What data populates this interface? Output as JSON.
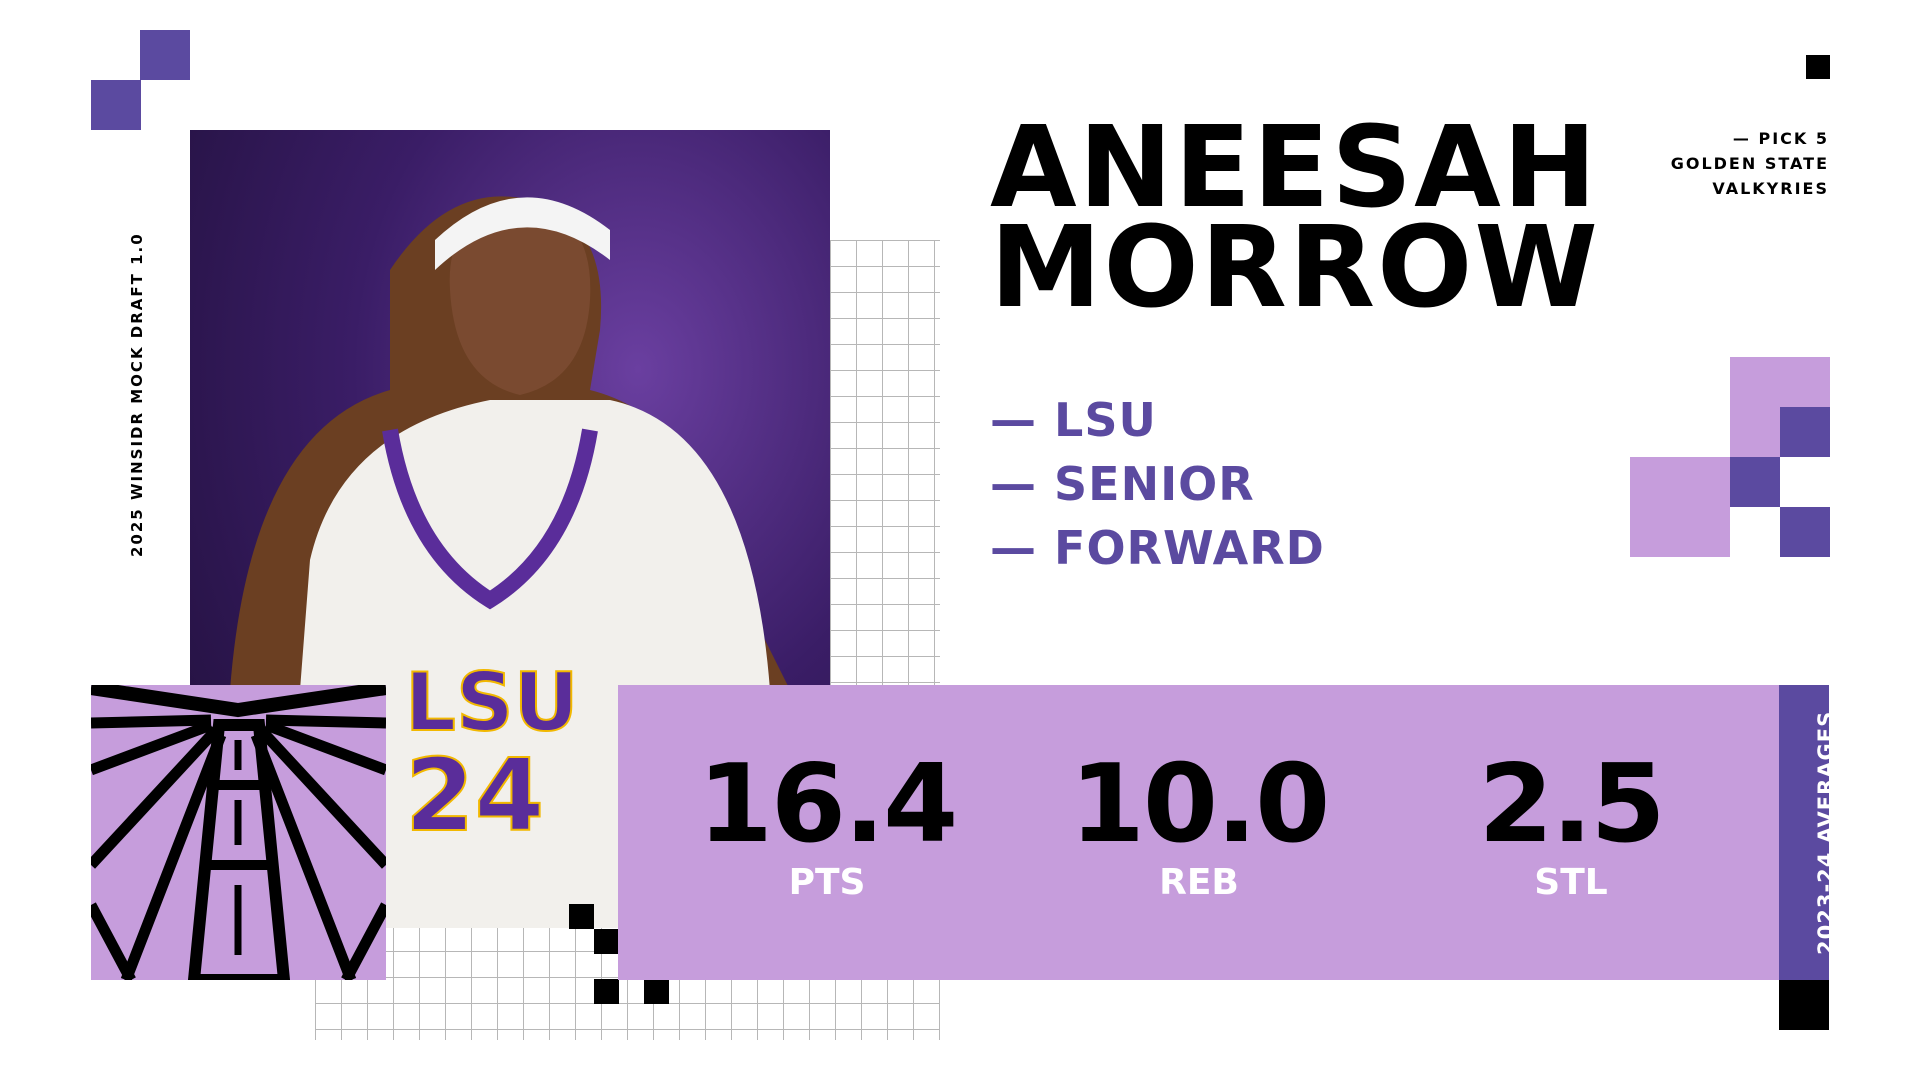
{
  "side_label": "2025 WINSIDR MOCK DRAFT 1.0",
  "player": {
    "first_name": "ANEESAH",
    "last_name": "MORROW"
  },
  "draft": {
    "pick": "— PICK 5",
    "team_line1": "GOLDEN STATE",
    "team_line2": "VALKYRIES"
  },
  "details": [
    "— LSU",
    "— SENIOR",
    "— FORWARD"
  ],
  "photo": {
    "jersey_text": "LSU",
    "jersey_number": "24"
  },
  "stats": {
    "title": "2023-24 AVERAGES",
    "items": [
      {
        "value": "16.4",
        "label": "PTS"
      },
      {
        "value": "10.0",
        "label": "REB"
      },
      {
        "value": "2.5",
        "label": "STL"
      }
    ]
  },
  "colors": {
    "light_purple": "#c69ddc",
    "dark_purple": "#5b4aa0",
    "black": "#000000"
  }
}
